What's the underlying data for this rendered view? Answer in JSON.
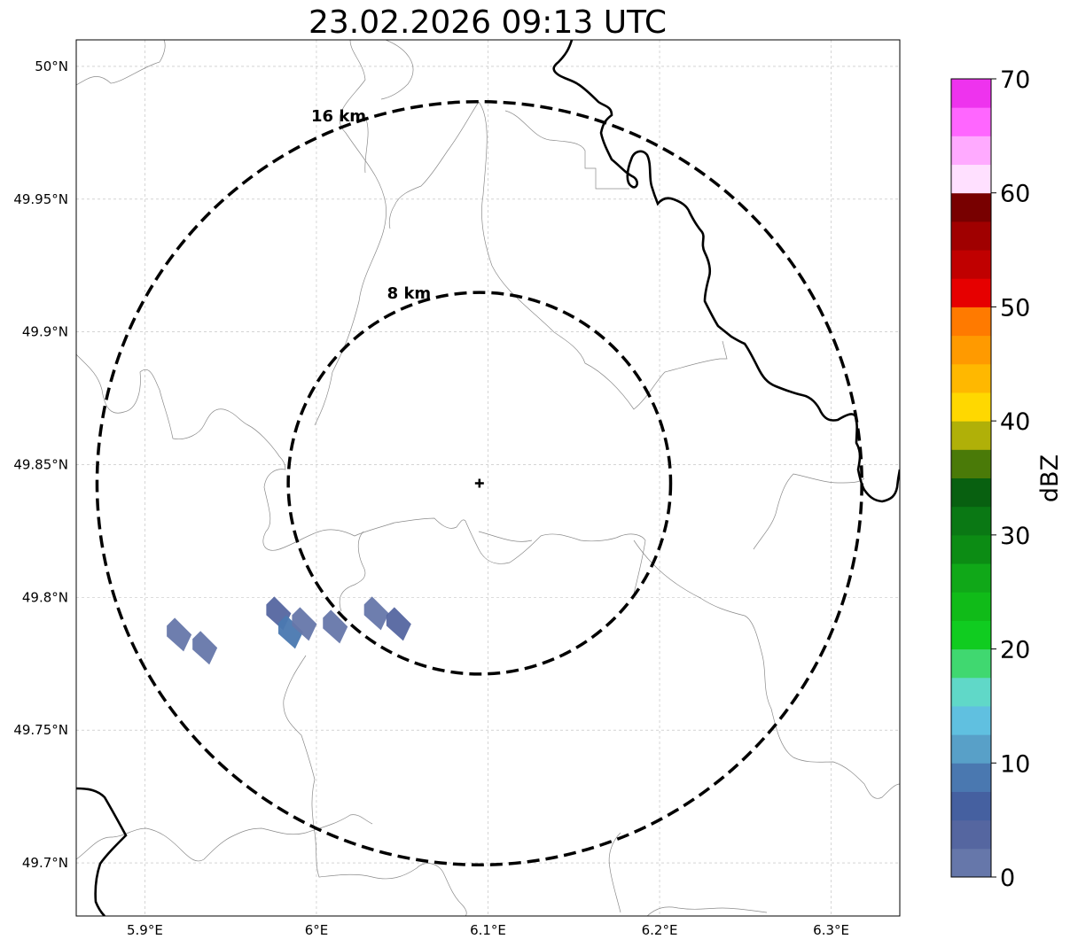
{
  "title": "23.02.2026 09:13 UTC",
  "map": {
    "lon_range": [
      5.86,
      6.34
    ],
    "lat_range": [
      49.68,
      50.01
    ],
    "x_ticks": [
      {
        "value": 5.9,
        "label": "5.9°E"
      },
      {
        "value": 6.0,
        "label": "6°E"
      },
      {
        "value": 6.1,
        "label": "6.1°E"
      },
      {
        "value": 6.2,
        "label": "6.2°E"
      },
      {
        "value": 6.3,
        "label": "6.3°E"
      }
    ],
    "y_ticks": [
      {
        "value": 50.0,
        "label": "50°N"
      },
      {
        "value": 49.95,
        "label": "49.95°N"
      },
      {
        "value": 49.9,
        "label": "49.9°N"
      },
      {
        "value": 49.85,
        "label": "49.85°N"
      },
      {
        "value": 49.8,
        "label": "49.8°N"
      },
      {
        "value": 49.75,
        "label": "49.75°N"
      },
      {
        "value": 49.7,
        "label": "49.7°N"
      }
    ],
    "grid": true,
    "radar_site": {
      "lon": 6.095,
      "lat": 49.843
    },
    "range_rings": [
      {
        "label": "8 km",
        "radius_km": 8
      },
      {
        "label": "16 km",
        "radius_km": 16
      }
    ],
    "echoes_dbz": [
      {
        "lon": 5.92,
        "lat": 49.786,
        "dbz": 2
      },
      {
        "lon": 5.935,
        "lat": 49.781,
        "dbz": 2
      },
      {
        "lon": 5.978,
        "lat": 49.794,
        "dbz": 4
      },
      {
        "lon": 5.985,
        "lat": 49.787,
        "dbz": 8
      },
      {
        "lon": 5.993,
        "lat": 49.79,
        "dbz": 2
      },
      {
        "lon": 6.011,
        "lat": 49.789,
        "dbz": 2
      },
      {
        "lon": 6.035,
        "lat": 49.794,
        "dbz": 2
      },
      {
        "lon": 6.048,
        "lat": 49.79,
        "dbz": 4
      }
    ]
  },
  "colorbar": {
    "label": "dBZ",
    "min": 0,
    "max": 70,
    "ticks": [
      "0",
      "10",
      "20",
      "30",
      "40",
      "50",
      "60",
      "70"
    ],
    "levels": [
      {
        "from": 0,
        "to": 2.5,
        "color": "#6677aa"
      },
      {
        "from": 2.5,
        "to": 5,
        "color": "#5566a0"
      },
      {
        "from": 5,
        "to": 7.5,
        "color": "#4560a0"
      },
      {
        "from": 7.5,
        "to": 10,
        "color": "#4a78b0"
      },
      {
        "from": 10,
        "to": 12.5,
        "color": "#58a0c8"
      },
      {
        "from": 12.5,
        "to": 15,
        "color": "#60c0e0"
      },
      {
        "from": 15,
        "to": 17.5,
        "color": "#60d8c8"
      },
      {
        "from": 17.5,
        "to": 20,
        "color": "#40d870"
      },
      {
        "from": 20,
        "to": 22.5,
        "color": "#10cc20"
      },
      {
        "from": 22.5,
        "to": 25,
        "color": "#10bb18"
      },
      {
        "from": 25,
        "to": 27.5,
        "color": "#10a818"
      },
      {
        "from": 27.5,
        "to": 30,
        "color": "#0c8c14"
      },
      {
        "from": 30,
        "to": 32.5,
        "color": "#0a7814"
      },
      {
        "from": 32.5,
        "to": 35,
        "color": "#086010"
      },
      {
        "from": 35,
        "to": 37.5,
        "color": "#4a7a08"
      },
      {
        "from": 37.5,
        "to": 40,
        "color": "#b0b008"
      },
      {
        "from": 40,
        "to": 42.5,
        "color": "#ffd800"
      },
      {
        "from": 42.5,
        "to": 45,
        "color": "#ffb800"
      },
      {
        "from": 45,
        "to": 47.5,
        "color": "#ff9a00"
      },
      {
        "from": 47.5,
        "to": 50,
        "color": "#ff7a00"
      },
      {
        "from": 50,
        "to": 52.5,
        "color": "#e60000"
      },
      {
        "from": 52.5,
        "to": 55,
        "color": "#c00000"
      },
      {
        "from": 55,
        "to": 57.5,
        "color": "#a00000"
      },
      {
        "from": 57.5,
        "to": 60,
        "color": "#780000"
      },
      {
        "from": 60,
        "to": 62.5,
        "color": "#ffe0ff"
      },
      {
        "from": 62.5,
        "to": 65,
        "color": "#ffaaff"
      },
      {
        "from": 65,
        "to": 67.5,
        "color": "#ff66ff"
      },
      {
        "from": 67.5,
        "to": 70,
        "color": "#ee33ee"
      }
    ]
  }
}
